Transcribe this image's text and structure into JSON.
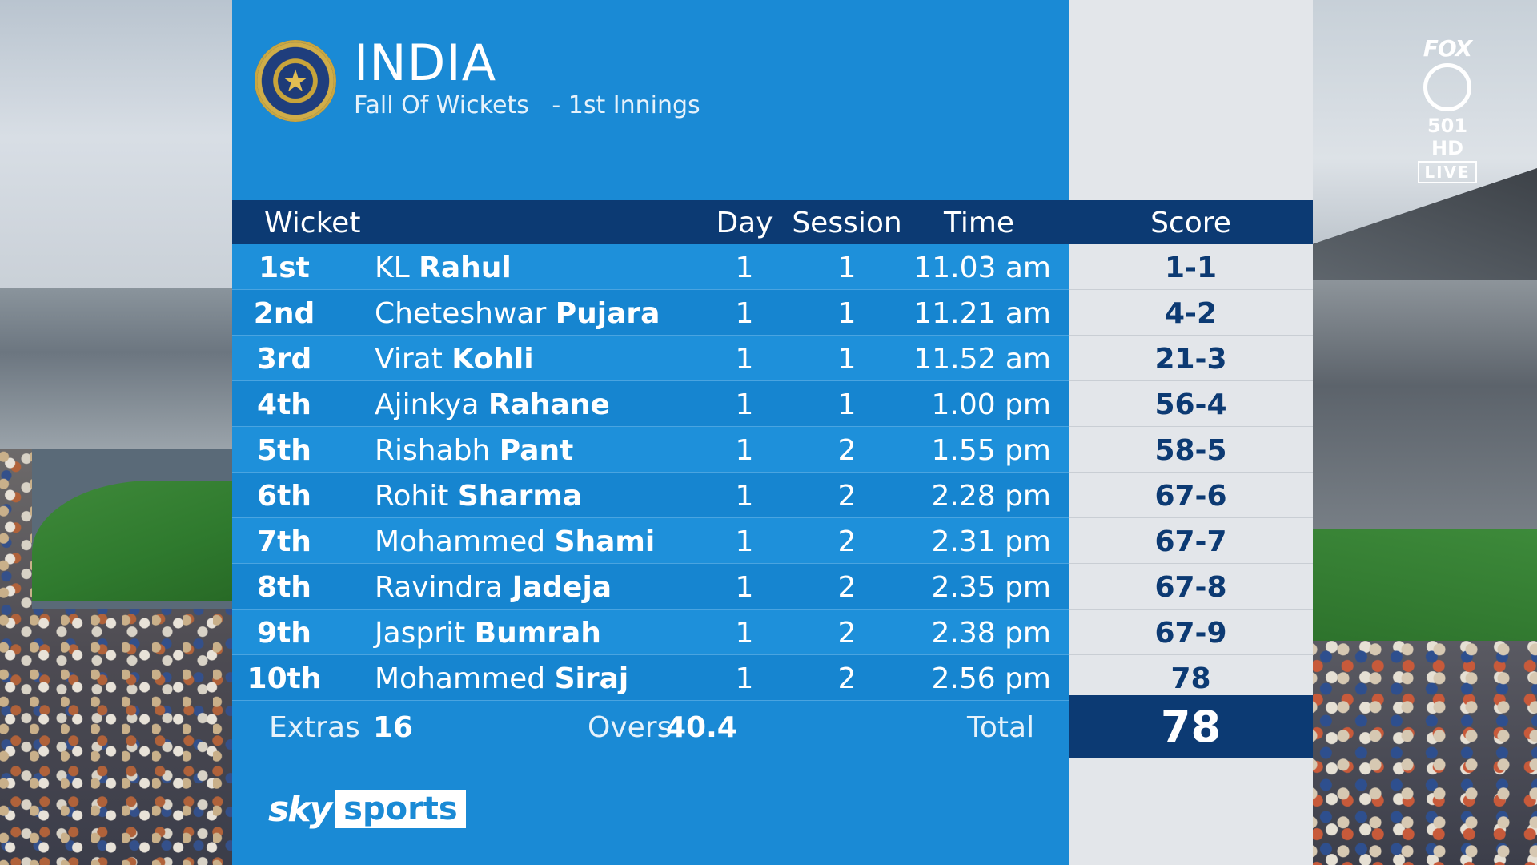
{
  "team": {
    "name": "INDIA",
    "subtitle": "Fall Of Wickets   - 1st Innings"
  },
  "table": {
    "headers": {
      "wicket": "Wicket",
      "day": "Day",
      "session": "Session",
      "time": "Time",
      "score": "Score"
    },
    "rows": [
      {
        "ord": "1st",
        "first": "KL",
        "last": "Rahul",
        "day": "1",
        "session": "1",
        "time": "11.03 am",
        "score": "1-1"
      },
      {
        "ord": "2nd",
        "first": "Cheteshwar",
        "last": "Pujara",
        "day": "1",
        "session": "1",
        "time": "11.21 am",
        "score": "4-2"
      },
      {
        "ord": "3rd",
        "first": "Virat",
        "last": "Kohli",
        "day": "1",
        "session": "1",
        "time": "11.52 am",
        "score": "21-3"
      },
      {
        "ord": "4th",
        "first": "Ajinkya",
        "last": "Rahane",
        "day": "1",
        "session": "1",
        "time": "1.00 pm",
        "score": "56-4"
      },
      {
        "ord": "5th",
        "first": "Rishabh",
        "last": "Pant",
        "day": "1",
        "session": "2",
        "time": "1.55 pm",
        "score": "58-5"
      },
      {
        "ord": "6th",
        "first": "Rohit",
        "last": "Sharma",
        "day": "1",
        "session": "2",
        "time": "2.28 pm",
        "score": "67-6"
      },
      {
        "ord": "7th",
        "first": "Mohammed",
        "last": "Shami",
        "day": "1",
        "session": "2",
        "time": "2.31 pm",
        "score": "67-7"
      },
      {
        "ord": "8th",
        "first": "Ravindra",
        "last": "Jadeja",
        "day": "1",
        "session": "2",
        "time": "2.35 pm",
        "score": "67-8"
      },
      {
        "ord": "9th",
        "first": "Jasprit",
        "last": "Bumrah",
        "day": "1",
        "session": "2",
        "time": "2.38 pm",
        "score": "67-9"
      },
      {
        "ord": "10th",
        "first": "Mohammed",
        "last": "Siraj",
        "day": "1",
        "session": "2",
        "time": "2.56 pm",
        "score": "78"
      }
    ]
  },
  "footer": {
    "extras_label": "Extras",
    "extras_value": "16",
    "overs_label": "Overs",
    "overs_value": "40.4",
    "total_label": "Total",
    "total_value": "78"
  },
  "branding": {
    "sky": "sky",
    "sports": "sports",
    "channel_brand": "FOX",
    "channel_number": "501 HD",
    "live": "LIVE"
  },
  "colors": {
    "panel_blue": "#1a8ad5",
    "header_navy": "#0c3a73",
    "score_column": "#e3e6ea"
  },
  "icons": {
    "badge": "bcci-crest-icon",
    "bug": "fox-cricket-ball-icon"
  }
}
